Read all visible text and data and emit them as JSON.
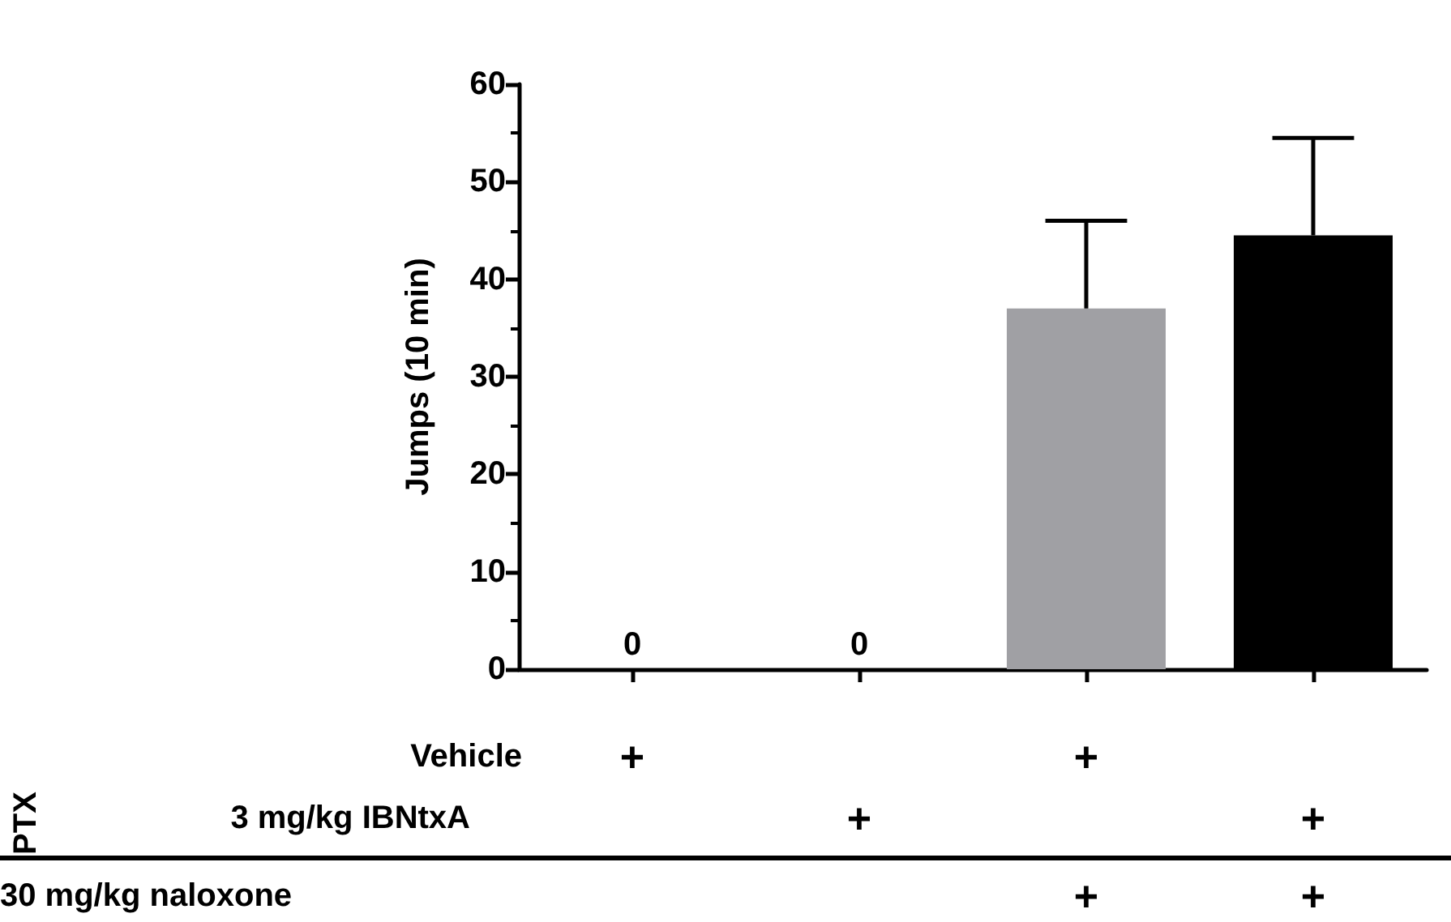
{
  "chart_data": {
    "type": "bar",
    "ylabel": "Jumps (10 min)",
    "categories": [
      null,
      null,
      null,
      null
    ],
    "values": [
      0,
      0,
      37,
      44.5
    ],
    "colors": [
      "#000000",
      "#000000",
      "#a0a0a4",
      "#000000"
    ],
    "errors": [
      null,
      null,
      [
        37,
        46
      ],
      [
        44.5,
        54.5
      ]
    ],
    "value_labels": [
      "0",
      "0",
      null,
      null
    ],
    "ylim": [
      0,
      60
    ],
    "yticks": [
      0,
      10,
      20,
      30,
      40,
      50,
      60
    ],
    "grid": false,
    "annotations": [
      "PTX",
      "Vehicle",
      "+",
      "+",
      "3 mg/kg IBNtxA",
      "+",
      "+",
      "30 mg/kg naloxone",
      "+",
      "+"
    ]
  }
}
